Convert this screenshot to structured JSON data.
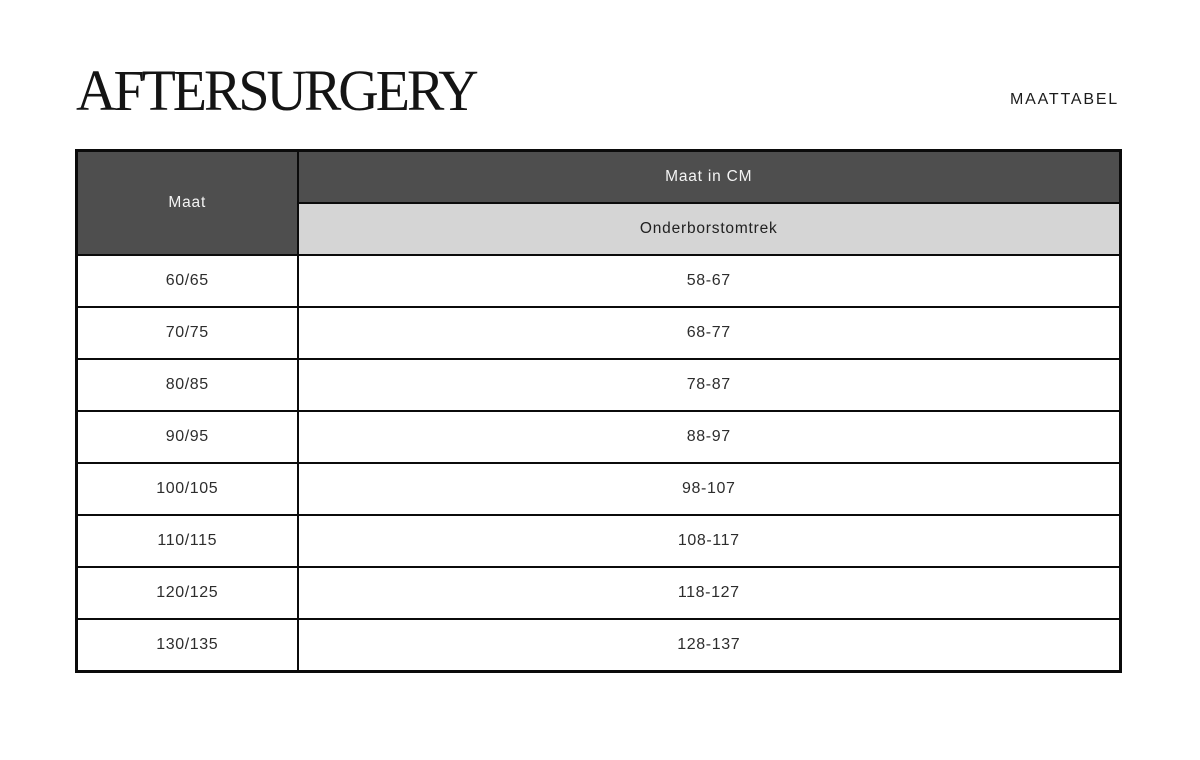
{
  "brand": {
    "logo_text": "AFTERSURGERY"
  },
  "header": {
    "page_label": "MAATTABEL"
  },
  "table": {
    "col1_header": "Maat",
    "col2_header": "Maat in CM",
    "col2_subheader": "Onderborstomtrek",
    "rows": [
      {
        "maat": "60/65",
        "cm": "58-67"
      },
      {
        "maat": "70/75",
        "cm": "68-77"
      },
      {
        "maat": "80/85",
        "cm": "78-87"
      },
      {
        "maat": "90/95",
        "cm": "88-97"
      },
      {
        "maat": "100/105",
        "cm": "98-107"
      },
      {
        "maat": "110/115",
        "cm": "108-117"
      },
      {
        "maat": "120/125",
        "cm": "118-127"
      },
      {
        "maat": "130/135",
        "cm": "128-137"
      }
    ]
  },
  "colors": {
    "header_dark_bg": "#4e4e4e",
    "header_light_bg": "#d5d5d5",
    "border": "#0b0b0b",
    "body_text": "#2d2d2d",
    "header_text": "#f4f4f4"
  }
}
